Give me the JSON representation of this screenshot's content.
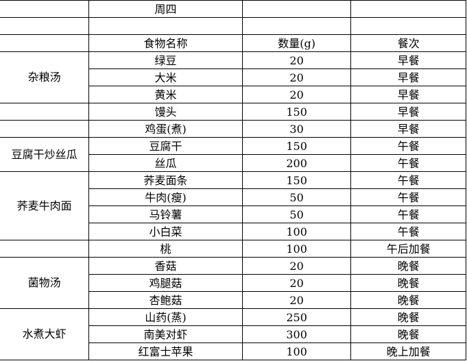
{
  "title_row": [
    "",
    "周四",
    "",
    ""
  ],
  "blank_row": [
    "",
    "",
    "",
    ""
  ],
  "header": [
    "",
    "食物名称",
    "数量(g)",
    "餐次"
  ],
  "groups": [
    {
      "dish": "杂粮汤",
      "items": [
        [
          "绿豆",
          "20",
          "早餐"
        ],
        [
          "大米",
          "20",
          "早餐"
        ],
        [
          "黄米",
          "20",
          "早餐"
        ]
      ]
    },
    {
      "dish": "",
      "items": [
        [
          "馒头",
          "150",
          "早餐"
        ]
      ]
    },
    {
      "dish": "",
      "items": [
        [
          "鸡蛋(煮)",
          "30",
          "早餐"
        ]
      ]
    },
    {
      "dish": "豆腐干炒丝瓜",
      "items": [
        [
          "豆腐干",
          "150",
          "午餐"
        ],
        [
          "丝瓜",
          "200",
          "午餐"
        ]
      ]
    },
    {
      "dish": "荞麦牛肉面",
      "items": [
        [
          "荞麦面条",
          "150",
          "午餐"
        ],
        [
          "牛肉(瘦)",
          "50",
          "午餐"
        ],
        [
          "马铃薯",
          "50",
          "午餐"
        ],
        [
          "小白菜",
          "100",
          "午餐"
        ]
      ]
    },
    {
      "dish": "",
      "items": [
        [
          "桃",
          "100",
          "午后加餐"
        ]
      ]
    },
    {
      "dish": "菌物汤",
      "items": [
        [
          "香菇",
          "20",
          "晚餐"
        ],
        [
          "鸡腿菇",
          "20",
          "晚餐"
        ],
        [
          "杏鲍菇",
          "20",
          "晚餐"
        ]
      ]
    },
    {
      "dish": "水煮大虾",
      "items": [
        [
          "山药(蒸)",
          "250",
          "晚餐"
        ],
        [
          "南美对虾",
          "300",
          "晚餐"
        ],
        [
          "红富士苹果",
          "100",
          "晚上加餐"
        ]
      ]
    }
  ]
}
